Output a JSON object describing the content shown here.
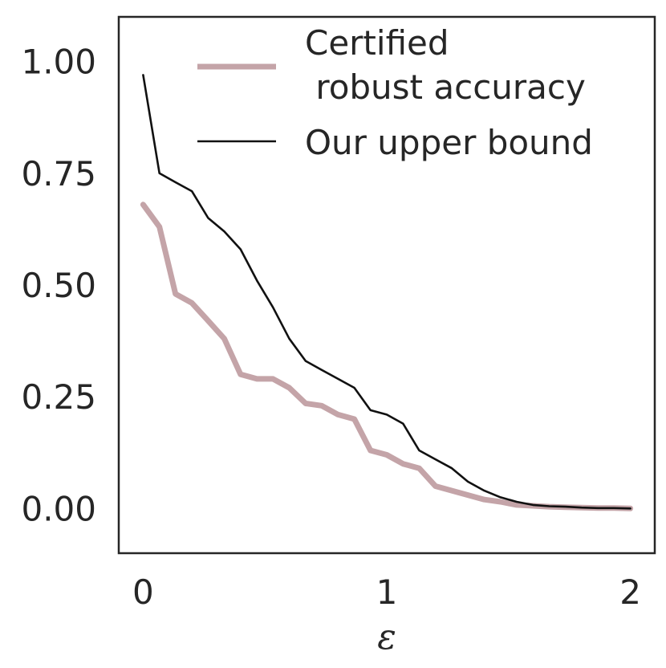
{
  "chart_data": {
    "type": "line",
    "title": "",
    "xlabel": "ε",
    "ylabel": "",
    "xlim": [
      -0.1,
      2.1
    ],
    "ylim": [
      -0.1,
      1.1
    ],
    "x_ticks": [
      0,
      1,
      2
    ],
    "x_tick_labels": [
      "0",
      "1",
      "2"
    ],
    "y_ticks": [
      0.0,
      0.25,
      0.5,
      0.75,
      1.0
    ],
    "y_tick_labels": [
      "0.00",
      "0.25",
      "0.50",
      "0.75",
      "1.00"
    ],
    "grid": false,
    "legend_position": "top-right",
    "x": [
      0,
      0.067,
      0.133,
      0.2,
      0.267,
      0.333,
      0.4,
      0.467,
      0.533,
      0.6,
      0.667,
      0.733,
      0.8,
      0.867,
      0.933,
      1.0,
      1.067,
      1.133,
      1.2,
      1.267,
      1.333,
      1.4,
      1.467,
      1.533,
      1.6,
      1.667,
      1.733,
      1.8,
      1.867,
      1.933,
      2.0
    ],
    "series": [
      {
        "name": "Certified\n robust accuracy",
        "color": "#c4a4a8",
        "values": [
          0.68,
          0.63,
          0.48,
          0.46,
          0.42,
          0.38,
          0.3,
          0.29,
          0.29,
          0.27,
          0.235,
          0.23,
          0.21,
          0.2,
          0.13,
          0.12,
          0.1,
          0.09,
          0.05,
          0.04,
          0.03,
          0.02,
          0.015,
          0.008,
          0.006,
          0.004,
          0.003,
          0.002,
          0.001,
          0.001,
          0.0
        ]
      },
      {
        "name": "Our upper bound",
        "color": "#111111",
        "values": [
          0.97,
          0.75,
          0.73,
          0.71,
          0.65,
          0.62,
          0.58,
          0.51,
          0.45,
          0.38,
          0.33,
          0.31,
          0.29,
          0.27,
          0.22,
          0.21,
          0.19,
          0.13,
          0.11,
          0.09,
          0.06,
          0.04,
          0.025,
          0.015,
          0.008,
          0.005,
          0.004,
          0.002,
          0.001,
          0.001,
          0.0
        ]
      }
    ]
  }
}
